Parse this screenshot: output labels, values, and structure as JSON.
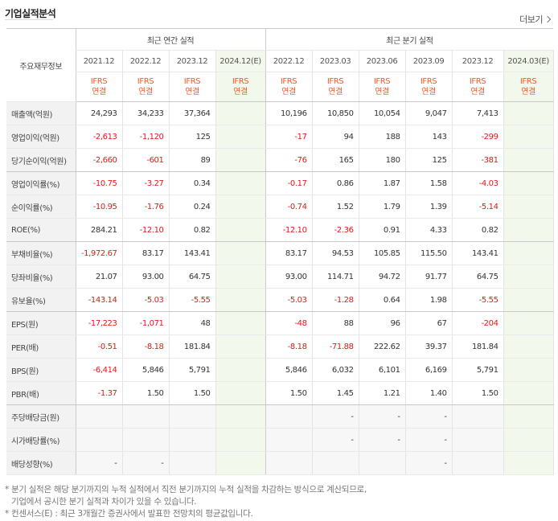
{
  "header": {
    "title": "기업실적분석",
    "more_label": "더보기"
  },
  "table": {
    "row_header_label": "주요재무정보",
    "group_annual": "최근 연간 실적",
    "group_quarter": "최근 분기 실적",
    "periods": [
      "2021.12",
      "2022.12",
      "2023.12",
      "2024.12(E)",
      "2022.12",
      "2023.03",
      "2023.06",
      "2023.09",
      "2023.12",
      "2024.03(E)"
    ],
    "standard_line1": "IFRS",
    "standard_line2": "연결",
    "rows": [
      {
        "label": "매출액(억원)",
        "values": [
          "24,293",
          "34,233",
          "37,364",
          "",
          "10,196",
          "10,850",
          "10,054",
          "9,047",
          "7,413",
          ""
        ]
      },
      {
        "label": "영업이익(억원)",
        "values": [
          "-2,613",
          "-1,120",
          "125",
          "",
          "-17",
          "94",
          "188",
          "143",
          "-299",
          ""
        ]
      },
      {
        "label": "당기순이익(억원)",
        "values": [
          "-2,660",
          "-601",
          "89",
          "",
          "-76",
          "165",
          "180",
          "125",
          "-381",
          ""
        ]
      },
      {
        "label": "영업이익률(%)",
        "values": [
          "-10.75",
          "-3.27",
          "0.34",
          "",
          "-0.17",
          "0.86",
          "1.87",
          "1.58",
          "-4.03",
          ""
        ]
      },
      {
        "label": "순이익률(%)",
        "values": [
          "-10.95",
          "-1.76",
          "0.24",
          "",
          "-0.74",
          "1.52",
          "1.79",
          "1.39",
          "-5.14",
          ""
        ]
      },
      {
        "label": "ROE(%)",
        "values": [
          "284.21",
          "-12.10",
          "0.82",
          "",
          "-12.10",
          "-2.36",
          "0.91",
          "4.33",
          "0.82",
          ""
        ]
      },
      {
        "label": "부채비율(%)",
        "values": [
          "-1,972.67",
          "83.17",
          "143.41",
          "",
          "83.17",
          "94.53",
          "105.85",
          "115.50",
          "143.41",
          ""
        ]
      },
      {
        "label": "당좌비율(%)",
        "values": [
          "21.07",
          "93.00",
          "64.75",
          "",
          "93.00",
          "114.71",
          "94.72",
          "91.77",
          "64.75",
          ""
        ]
      },
      {
        "label": "유보율(%)",
        "values": [
          "-143.14",
          "-5.03",
          "-5.55",
          "",
          "-5.03",
          "-1.28",
          "0.64",
          "1.98",
          "-5.55",
          ""
        ]
      },
      {
        "label": "EPS(원)",
        "values": [
          "-17,223",
          "-1,071",
          "48",
          "",
          "-48",
          "88",
          "96",
          "67",
          "-204",
          ""
        ]
      },
      {
        "label": "PER(배)",
        "values": [
          "-0.51",
          "-8.18",
          "181.84",
          "",
          "-8.18",
          "-71.88",
          "222.62",
          "39.37",
          "181.84",
          ""
        ]
      },
      {
        "label": "BPS(원)",
        "values": [
          "-6,414",
          "5,846",
          "5,791",
          "",
          "5,846",
          "6,032",
          "6,101",
          "6,169",
          "5,791",
          ""
        ]
      },
      {
        "label": "PBR(배)",
        "values": [
          "-1.37",
          "1.50",
          "1.50",
          "",
          "1.50",
          "1.45",
          "1.21",
          "1.40",
          "1.50",
          ""
        ]
      },
      {
        "label": "주당배당금(원)",
        "values": [
          "",
          "",
          "",
          "",
          "",
          "-",
          "-",
          "-",
          "",
          ""
        ]
      },
      {
        "label": "시가배당률(%)",
        "values": [
          "",
          "",
          "",
          "",
          "",
          "-",
          "-",
          "-",
          "",
          ""
        ]
      },
      {
        "label": "배당성향(%)",
        "values": [
          "-",
          "-",
          "",
          "",
          "",
          "",
          "",
          "-",
          "",
          ""
        ]
      }
    ]
  },
  "notes": {
    "line1": "* 분기 실적은 해당 분기까지의 누적 실적에서 직전 분기까지의 누적 실적을 차감하는 방식으로 계산되므로,",
    "line2": "기업에서 공시한 분기 실적과 차이가 있을 수 있습니다.",
    "line3": "* 컨센서스(E) : 최근 3개월간 증권사에서 발표한 전망치의 평균값입니다."
  },
  "colors": {
    "negative": "#e11919",
    "ifrs": "#f05a28",
    "estimate_bg": "#f3f8ec",
    "label_bg": "#f2f2f2"
  }
}
